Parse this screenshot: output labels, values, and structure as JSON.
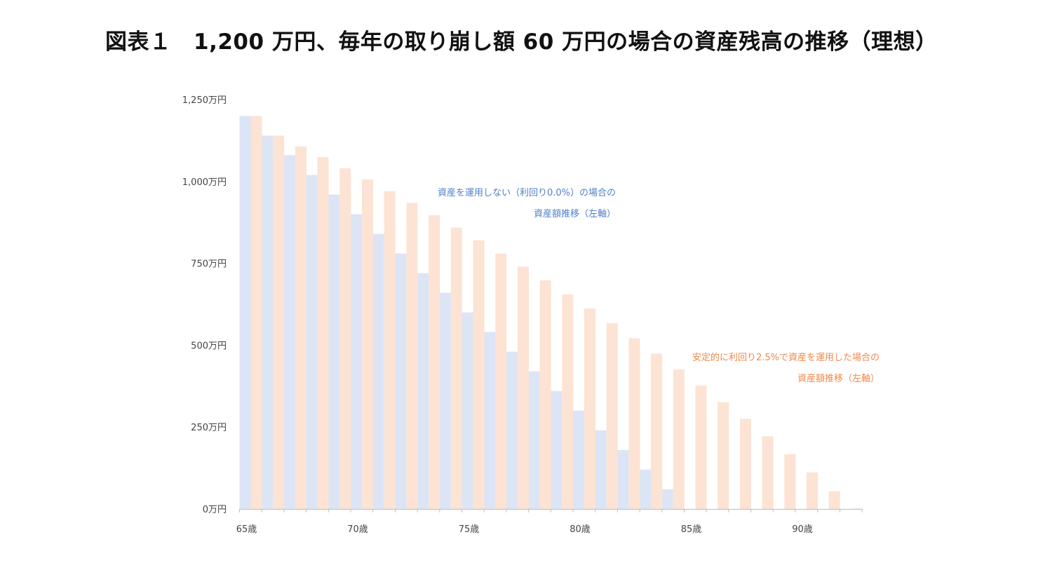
{
  "title": "図表１　1,200 万円、毎年の取り崩し額 60 万円の場合の資産残高の推移（理想）",
  "chart_data": {
    "type": "bar",
    "title": "図表１　1,200 万円、毎年の取り崩し額 60 万円の場合の資産残高の推移（理想）",
    "xlabel": "",
    "ylabel": "",
    "ylim": [
      0,
      1250
    ],
    "y_ticks": [
      0,
      250,
      500,
      750,
      1000,
      1250
    ],
    "y_tick_labels": [
      "0万円",
      "250万円",
      "500万円",
      "750万円",
      "1,000万円",
      "1,250万円"
    ],
    "x_ticks": [
      65,
      70,
      75,
      80,
      85,
      90
    ],
    "x_tick_labels": [
      "65歳",
      "70歳",
      "75歳",
      "80歳",
      "85歳",
      "90歳"
    ],
    "categories": [
      65,
      66,
      67,
      68,
      69,
      70,
      71,
      72,
      73,
      74,
      75,
      76,
      77,
      78,
      79,
      80,
      81,
      82,
      83,
      84,
      85,
      86,
      87,
      88,
      89,
      90,
      91,
      92
    ],
    "grid": false,
    "series": [
      {
        "color": "#dce5f6",
        "values": [
          1200,
          1140,
          1080,
          1020,
          960,
          900,
          840,
          780,
          720,
          660,
          600,
          540,
          480,
          420,
          360,
          300,
          240,
          180,
          120,
          60,
          0,
          0,
          0,
          0,
          0,
          0,
          0,
          0
        ]
      },
      {
        "color": "#fce3d3",
        "values": [
          1200,
          1140,
          1107,
          1074,
          1040,
          1006,
          970,
          934,
          897,
          859,
          820,
          780,
          740,
          698,
          655,
          612,
          567,
          521,
          474,
          426,
          377,
          326,
          275,
          222,
          167,
          111,
          54,
          1
        ]
      }
    ],
    "annotations": [
      {
        "lines": [
          "資産を運用しない（利回り0.0%）の場合の",
          "資産額推移（左軸）"
        ],
        "color": "#4f7fc8"
      },
      {
        "lines": [
          "安定的に利回り2.5%で資産を運用した場合の",
          "資産額推移（左軸）"
        ],
        "color": "#f0894a"
      }
    ]
  }
}
